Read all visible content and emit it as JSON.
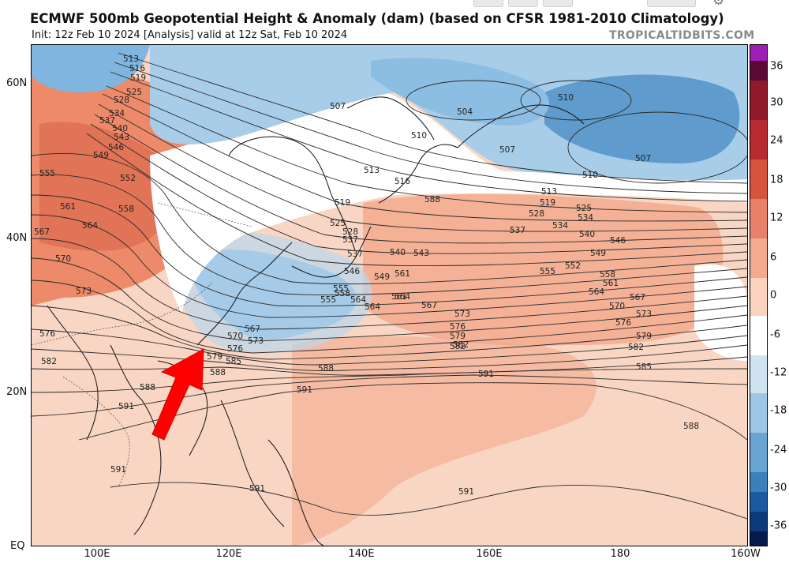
{
  "header": {
    "title": "ECMWF 500mb Geopotential Height & Anomaly (dam) (based on CFSR 1981-2010 Climatology)",
    "subtitle": "Init: 12z Feb 10 2024   [Analysis]   valid at 12z Sat, Feb 10 2024",
    "watermark": "TROPICALTIDBITS.COM"
  },
  "map_axes": {
    "lat_labels": [
      "60N",
      "40N",
      "20N",
      "EQ"
    ],
    "lon_labels": [
      "100E",
      "120E",
      "140E",
      "160E",
      "180",
      "160W"
    ]
  },
  "colorbar": {
    "labels": [
      "36",
      "30",
      "24",
      "18",
      "12",
      "6",
      "0",
      "-6",
      "-12",
      "-18",
      "-24",
      "-30",
      "-36"
    ],
    "colors": [
      "#5b0a36",
      "#8e1a2a",
      "#b72b30",
      "#d5543d",
      "#e8806a",
      "#f3aa8f",
      "#fad2bd",
      "#ffffff",
      "#cfe3f1",
      "#9fc6e4",
      "#6aa4d3",
      "#3b7fbd",
      "#1c5a9f",
      "#0d3a7a",
      "#061a4b",
      "#9b1fb3"
    ]
  },
  "contour_labels": {
    "high_set": [
      "513",
      "516",
      "519",
      "525",
      "528",
      "534",
      "537",
      "540",
      "543",
      "546",
      "549",
      "552",
      "555",
      "558",
      "561",
      "564",
      "567",
      "570",
      "573",
      "576",
      "579",
      "582",
      "585",
      "588",
      "591"
    ],
    "low_set": [
      "504",
      "507",
      "510"
    ],
    "tropics": [
      "588",
      "591"
    ]
  },
  "annotation": {
    "arrow_color": "#ff0000",
    "arrow_direction": "northeast"
  }
}
